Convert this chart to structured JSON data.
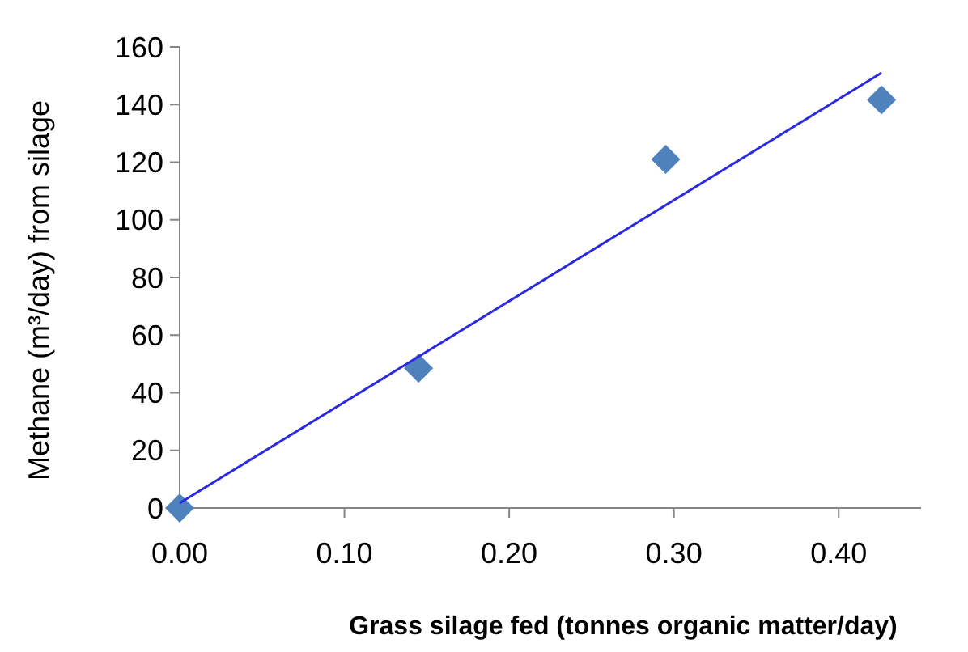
{
  "chart_data": {
    "type": "scatter",
    "xlabel": "Grass silage fed (tonnes organic matter/day)",
    "ylabel": "Methane (m³/day) from silage",
    "xlim": [
      0,
      0.45
    ],
    "xticks": [
      {
        "value": 0,
        "label": "0.00"
      },
      {
        "value": 0.1,
        "label": "0.10"
      },
      {
        "value": 0.2,
        "label": "0.20"
      },
      {
        "value": 0.3,
        "label": "0.30"
      },
      {
        "value": 0.4,
        "label": "0.40"
      }
    ],
    "ylim": [
      0,
      160
    ],
    "yticks": [
      0,
      20,
      40,
      60,
      80,
      100,
      120,
      140,
      160
    ],
    "grid": false,
    "marker": "diamond",
    "series": [
      {
        "color": "#4f81bd",
        "x": [
          0,
          0.145,
          0.295,
          0.426
        ],
        "values": [
          0,
          48.5,
          121,
          141.6
        ]
      },
      {
        "type": "line",
        "color": "#2a2ae0",
        "marker": "none",
        "line_style": "solid",
        "x": [
          0,
          0.426
        ],
        "values": [
          1.7,
          151
        ]
      }
    ]
  }
}
